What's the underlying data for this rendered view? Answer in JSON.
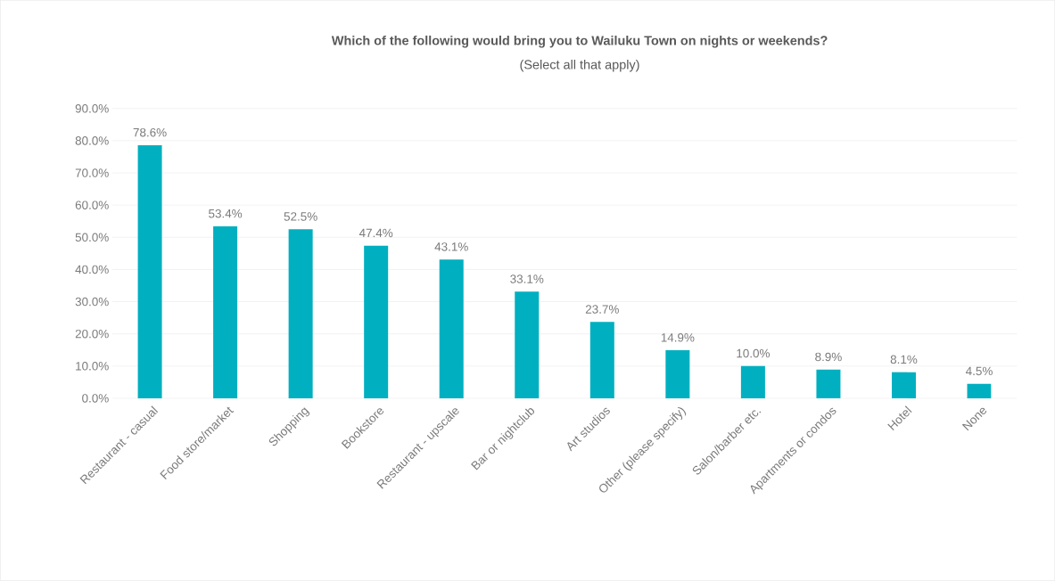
{
  "chart_data": {
    "type": "bar",
    "title": "Which of the following would bring you to Wailuku Town on nights or weekends?",
    "subtitle": "(Select all that apply)",
    "categories": [
      "Restaurant - casual",
      "Food store/market",
      "Shopping",
      "Bookstore",
      "Restaurant - upscale",
      "Bar or nightclub",
      "Art studios",
      "Other (please specify)",
      "Salon/barber etc.",
      "Apartments or condos",
      "Hotel",
      "None"
    ],
    "values": [
      78.6,
      53.4,
      52.5,
      47.4,
      43.1,
      33.1,
      23.7,
      14.9,
      10.0,
      8.9,
      8.1,
      4.5
    ],
    "value_labels": [
      "78.6%",
      "53.4%",
      "52.5%",
      "47.4%",
      "43.1%",
      "33.1%",
      "23.7%",
      "14.9%",
      "10.0%",
      "8.9%",
      "8.1%",
      "4.5%"
    ],
    "color": "#00b0c0",
    "ylim": [
      0,
      90
    ],
    "yticks": [
      {
        "value": 0,
        "label": "0.0%"
      },
      {
        "value": 10,
        "label": "10.0%"
      },
      {
        "value": 20,
        "label": "20.0%"
      },
      {
        "value": 30,
        "label": "30.0%"
      },
      {
        "value": 40,
        "label": "40.0%"
      },
      {
        "value": 50,
        "label": "50.0%"
      },
      {
        "value": 60,
        "label": "60.0%"
      },
      {
        "value": 70,
        "label": "70.0%"
      },
      {
        "value": 80,
        "label": "80.0%"
      },
      {
        "value": 90,
        "label": "90.0%"
      }
    ],
    "grid": "y"
  }
}
